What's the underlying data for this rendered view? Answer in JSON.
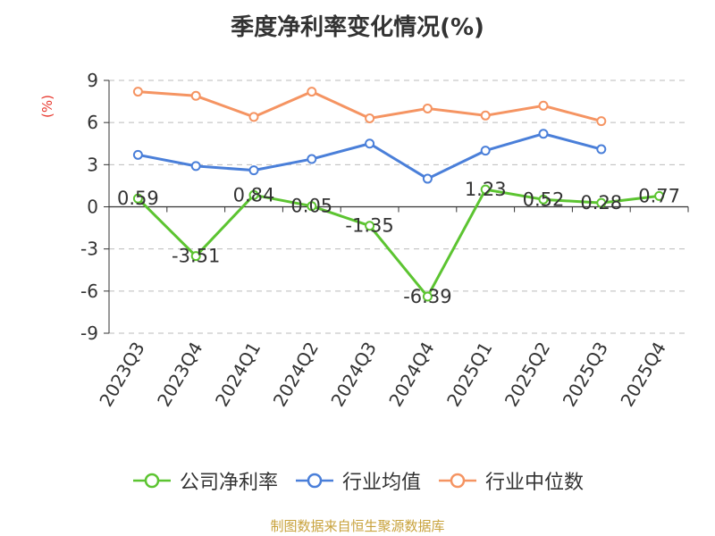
{
  "title": "季度净利率变化情况(%)",
  "unit_label": "(%)",
  "source": "制图数据来自恒生聚源数据库",
  "chart_data": {
    "type": "line",
    "categories": [
      "2023Q3",
      "2023Q4",
      "2024Q1",
      "2024Q2",
      "2024Q3",
      "2024Q4",
      "2025Q1",
      "2025Q2",
      "2025Q3",
      "2025Q4"
    ],
    "ylim": [
      -9,
      9
    ],
    "yticks": [
      9,
      6,
      3,
      0,
      -3,
      -6,
      -9
    ],
    "grid": true,
    "legend_position": "bottom",
    "series": [
      {
        "name": "公司净利率",
        "color": "#5cc431",
        "values": [
          0.59,
          -3.51,
          0.84,
          0.05,
          -1.35,
          -6.39,
          1.23,
          0.52,
          0.28,
          0.77
        ],
        "labels": [
          "0.59",
          "-3.51",
          "0.84",
          "0.05",
          "-1.35",
          "-6.39",
          "1.23",
          "0.52",
          "0.28",
          "0.77"
        ]
      },
      {
        "name": "行业均值",
        "color": "#4a7fd9",
        "values": [
          3.7,
          2.9,
          2.6,
          3.4,
          4.5,
          2.0,
          4.0,
          5.2,
          4.1,
          null
        ]
      },
      {
        "name": "行业中位数",
        "color": "#f59462",
        "values": [
          8.2,
          7.9,
          6.4,
          8.2,
          6.3,
          7.0,
          6.5,
          7.2,
          6.1,
          null
        ]
      }
    ]
  }
}
